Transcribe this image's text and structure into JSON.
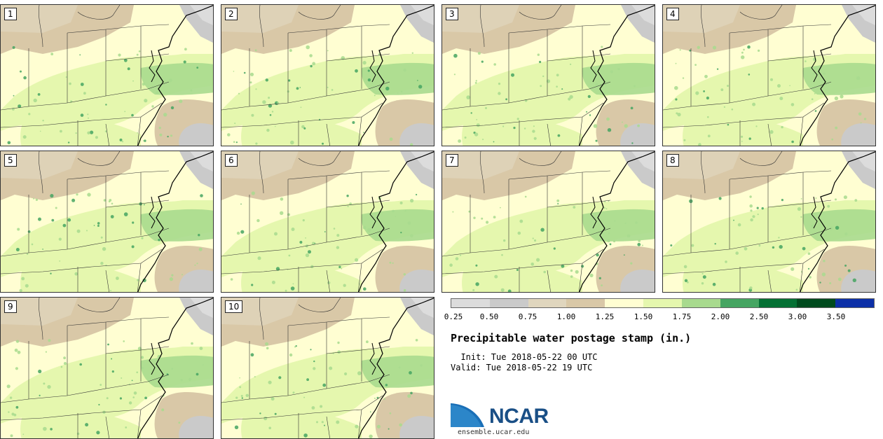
{
  "members": [
    "1",
    "2",
    "3",
    "4",
    "5",
    "6",
    "7",
    "8",
    "9",
    "10"
  ],
  "colorbar": {
    "colors": [
      "#dcdcdc",
      "#cacaca",
      "#e0d6be",
      "#d9c8a7",
      "#fffed2",
      "#e5f7ae",
      "#a8da8e",
      "#45a562",
      "#047034",
      "#004b1e",
      "#0c2fa7"
    ],
    "ticks": [
      "0.25",
      "0.50",
      "0.75",
      "1.00",
      "1.25",
      "1.50",
      "1.75",
      "2.00",
      "2.50",
      "3.00",
      "3.50"
    ]
  },
  "title": "Precipitable water postage stamp (in.)",
  "init_line": "  Init: Tue 2018-05-22 00 UTC",
  "valid_line": "Valid: Tue 2018-05-22 19 UTC",
  "logo": {
    "text": "NCAR",
    "site": "ensemble.ucar.edu"
  }
}
